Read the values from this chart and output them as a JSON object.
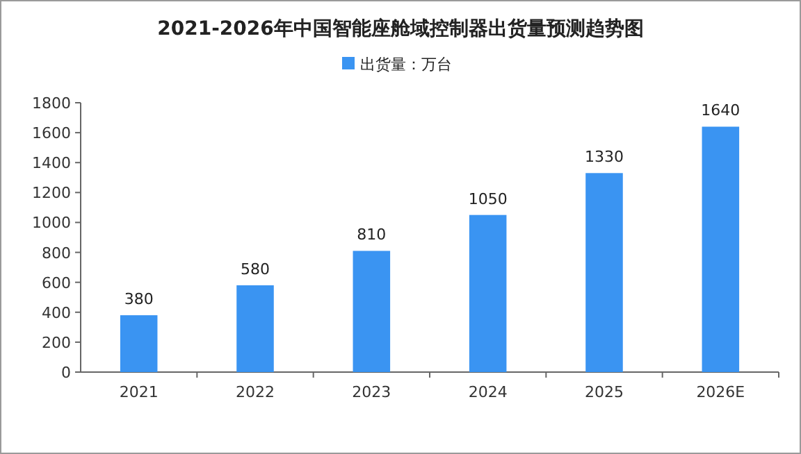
{
  "chart_data": {
    "type": "bar",
    "title": "2021-2026年中国智能座舱域控制器出货量预测趋势图",
    "categories": [
      "2021",
      "2022",
      "2023",
      "2024",
      "2025",
      "2026E"
    ],
    "series": [
      {
        "name": "出货量：万台",
        "color": "#3a94f2",
        "values": [
          380,
          580,
          810,
          1050,
          1330,
          1640
        ]
      }
    ],
    "ylim": [
      0,
      1800
    ],
    "yticks": [
      0,
      200,
      400,
      600,
      800,
      1000,
      1200,
      1400,
      1600,
      1800
    ],
    "data_labels": true,
    "legend": "top",
    "grid": false
  }
}
